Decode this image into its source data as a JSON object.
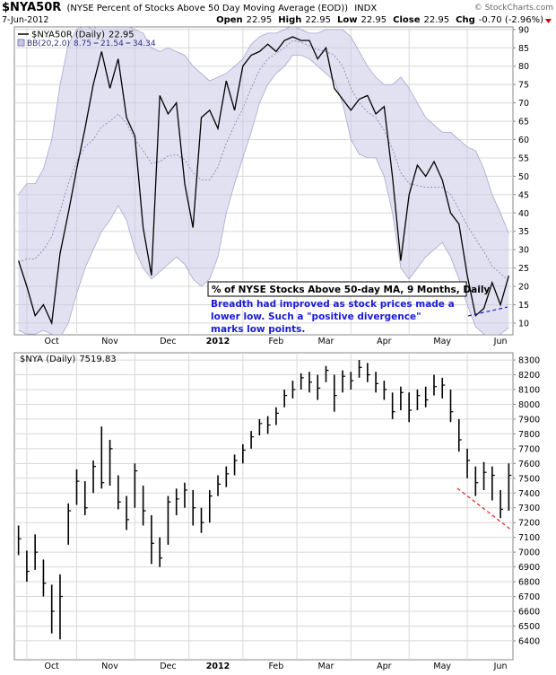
{
  "chart_data": [
    {
      "type": "line",
      "title": "$NYA50R",
      "subtitle": "(NYSE Percent of Stocks Above 50 Day Moving Average (EOD))",
      "exchange": "INDX",
      "date": "7-Jun-2012",
      "copyright": "© StockCharts.com",
      "quote": [
        {
          "label": "Open",
          "value": "22.95"
        },
        {
          "label": "High",
          "value": "22.95"
        },
        {
          "label": "Low",
          "value": "22.95"
        },
        {
          "label": "Close",
          "value": "22.95"
        },
        {
          "label": "Chg",
          "value": "-0.70 (-2.96%)"
        }
      ],
      "annotation_title": "% of NYSE Stocks Above 50-day MA, 9 Months, Daily",
      "annotation_note": [
        "Breadth had improved as stock prices made a",
        "lower low. Such a \"positive divergence\"",
        "marks low points."
      ],
      "categories": [
        null,
        null,
        null,
        null,
        "Oct",
        null,
        null,
        null,
        null,
        null,
        null,
        "Nov",
        null,
        null,
        null,
        null,
        null,
        null,
        "Dec",
        null,
        null,
        null,
        null,
        null,
        "2012",
        null,
        null,
        null,
        null,
        null,
        null,
        "Feb",
        null,
        null,
        null,
        null,
        null,
        "Mar",
        null,
        null,
        null,
        null,
        null,
        null,
        "Apr",
        null,
        null,
        null,
        null,
        null,
        null,
        "May",
        null,
        null,
        null,
        null,
        null,
        null,
        "Jun",
        null
      ],
      "series": [
        {
          "name": "$NYA50R (Daily)",
          "color": "#000000",
          "values": [
            27,
            20,
            12,
            15,
            10,
            29,
            40,
            52,
            63,
            75,
            84,
            74,
            82,
            66,
            61,
            36,
            23,
            72,
            67,
            70,
            48,
            36,
            66,
            68,
            63,
            76,
            68,
            80,
            83,
            84,
            86,
            84,
            87,
            88,
            87,
            87,
            82,
            85,
            74,
            71,
            68,
            71,
            72,
            67,
            69,
            50,
            27,
            45,
            53,
            50,
            54,
            49,
            40,
            37,
            23,
            12,
            14,
            21,
            15,
            22.95
          ]
        }
      ],
      "bollinger": {
        "name": "BB(20,2.0)",
        "color": "#c8c8e6",
        "lower": [
          8,
          7,
          7,
          8,
          7,
          6,
          10,
          18,
          25,
          30,
          35,
          38,
          42,
          38,
          30,
          25,
          22,
          24,
          26,
          28,
          26,
          22,
          20,
          22,
          28,
          40,
          48,
          55,
          62,
          70,
          75,
          78,
          80,
          83,
          83,
          82,
          80,
          78,
          76,
          70,
          60,
          56,
          55,
          55,
          50,
          40,
          25,
          22,
          25,
          28,
          30,
          32,
          28,
          22,
          15,
          9,
          7,
          6,
          7,
          8.75
        ],
        "middle": [
          26.5,
          27.5,
          27.5,
          30,
          33.5,
          40.5,
          48,
          54,
          58,
          60,
          63.5,
          65,
          67,
          64.5,
          60,
          57,
          53.5,
          54,
          55.5,
          56,
          54.5,
          51,
          49,
          49,
          52.5,
          59,
          64,
          68.5,
          74,
          79,
          82,
          83.5,
          85,
          87,
          86.5,
          85.5,
          84.5,
          84,
          83,
          80,
          74,
          70,
          67.5,
          66,
          62.5,
          57.5,
          51,
          48,
          47.5,
          47,
          47,
          47,
          45,
          41,
          36.5,
          33,
          29.5,
          25.5,
          23.5,
          21.54
        ],
        "upper": [
          45,
          48,
          48,
          52,
          60,
          75,
          86,
          90,
          91,
          90,
          92,
          92,
          92,
          91,
          90,
          89,
          85,
          84,
          85,
          84,
          83,
          80,
          78,
          76,
          77,
          78,
          80,
          82,
          86,
          88,
          89,
          89,
          90,
          91,
          90,
          89,
          89,
          90,
          90,
          90,
          88,
          84,
          80,
          77,
          75,
          75,
          77,
          74,
          70,
          66,
          64,
          62,
          62,
          60,
          58,
          57,
          52,
          45,
          40,
          34.34
        ]
      },
      "ylim": [
        6.8,
        90.7
      ],
      "yticks": [
        10,
        15,
        20,
        25,
        30,
        35,
        40,
        45,
        50,
        55,
        60,
        65,
        70,
        75,
        80,
        85,
        90
      ],
      "grid": true
    },
    {
      "type": "ohlc",
      "categories": [
        null,
        null,
        null,
        null,
        "Oct",
        null,
        null,
        null,
        null,
        null,
        null,
        "Nov",
        null,
        null,
        null,
        null,
        null,
        null,
        "Dec",
        null,
        null,
        null,
        null,
        null,
        "2012",
        null,
        null,
        null,
        null,
        null,
        null,
        "Feb",
        null,
        null,
        null,
        null,
        null,
        "Mar",
        null,
        null,
        null,
        null,
        null,
        null,
        "Apr",
        null,
        null,
        null,
        null,
        null,
        null,
        "May",
        null,
        null,
        null,
        null,
        null,
        null,
        "Jun",
        null
      ],
      "series": [
        {
          "name": "$NYA (Daily)",
          "color": "#000000",
          "high": [
            7180,
            7010,
            7120,
            6950,
            6780,
            6850,
            7330,
            7560,
            7480,
            7620,
            7850,
            7760,
            7520,
            7380,
            7600,
            7450,
            7250,
            7100,
            7380,
            7430,
            7470,
            7420,
            7300,
            7420,
            7520,
            7580,
            7660,
            7730,
            7820,
            7900,
            7920,
            7980,
            8100,
            8160,
            8210,
            8220,
            8200,
            8260,
            8200,
            8230,
            8220,
            8300,
            8280,
            8220,
            8160,
            8080,
            8120,
            8080,
            8100,
            8120,
            8200,
            8180,
            8100,
            7900,
            7700,
            7580,
            7610,
            7580,
            7420,
            7600
          ],
          "low": [
            6980,
            6800,
            6880,
            6700,
            6450,
            6410,
            7050,
            7320,
            7250,
            7400,
            7430,
            7450,
            7290,
            7150,
            7300,
            7180,
            6920,
            6900,
            7050,
            7250,
            7300,
            7180,
            7130,
            7200,
            7380,
            7440,
            7520,
            7600,
            7700,
            7790,
            7800,
            7860,
            7980,
            8040,
            8100,
            8080,
            8030,
            8150,
            7950,
            8080,
            8100,
            8180,
            8150,
            8080,
            8030,
            7900,
            7960,
            7880,
            7960,
            7980,
            8060,
            8040,
            7880,
            7680,
            7500,
            7380,
            7420,
            7350,
            7230,
            7280
          ],
          "close": [
            7090,
            6870,
            7000,
            6790,
            6600,
            6700,
            7280,
            7480,
            7300,
            7580,
            7470,
            7700,
            7340,
            7220,
            7550,
            7280,
            7060,
            6960,
            7340,
            7360,
            7420,
            7300,
            7200,
            7380,
            7460,
            7530,
            7620,
            7690,
            7780,
            7870,
            7860,
            7940,
            8060,
            8100,
            8180,
            8150,
            8110,
            8230,
            8060,
            8190,
            8160,
            8250,
            8200,
            8140,
            8100,
            7950,
            8080,
            7960,
            8060,
            8030,
            8120,
            8130,
            7950,
            7760,
            7620,
            7470,
            7540,
            7520,
            7290,
            7519.83
          ]
        }
      ],
      "ylim": [
        6272,
        8349
      ],
      "yticks": [
        6400,
        6500,
        6600,
        6700,
        6800,
        6900,
        7000,
        7100,
        7200,
        7300,
        7400,
        7500,
        7600,
        7700,
        7800,
        7900,
        8000,
        8100,
        8200,
        8300
      ],
      "grid": true
    }
  ]
}
